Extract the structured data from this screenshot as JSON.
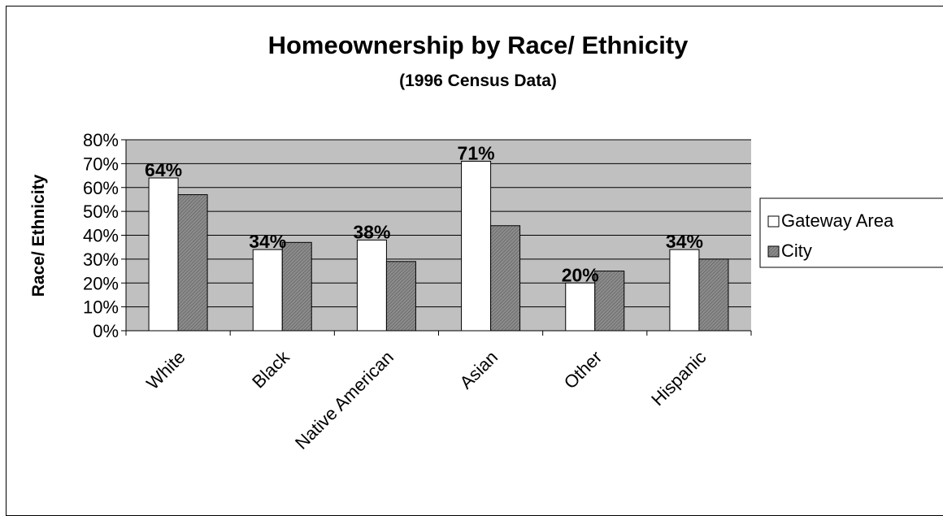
{
  "chart_data": {
    "type": "bar",
    "title": "Homeownership by Race/ Ethnicity",
    "subtitle": "(1996 Census Data)",
    "xlabel": "",
    "ylabel": "Race/ Ethnicity",
    "categories": [
      "White",
      "Black",
      "Native American",
      "Asian",
      "Other",
      "Hispanic"
    ],
    "series": [
      {
        "name": "Gateway Area",
        "values": [
          64,
          34,
          38,
          71,
          20,
          34
        ]
      },
      {
        "name": "City",
        "values": [
          57,
          37,
          29,
          44,
          25,
          30
        ]
      }
    ],
    "data_labels": [
      "64%",
      "34%",
      "38%",
      "71%",
      "20%",
      "34%"
    ],
    "ylim": [
      0,
      80
    ],
    "yticks": [
      "0%",
      "10%",
      "20%",
      "30%",
      "40%",
      "50%",
      "60%",
      "70%",
      "80%"
    ],
    "grid": true,
    "legend_position": "right",
    "colors": {
      "plot_background": "#c0c0c0",
      "gateway_fill": "#ffffff",
      "city_fill": "#808080",
      "gridline": "#000000"
    }
  }
}
